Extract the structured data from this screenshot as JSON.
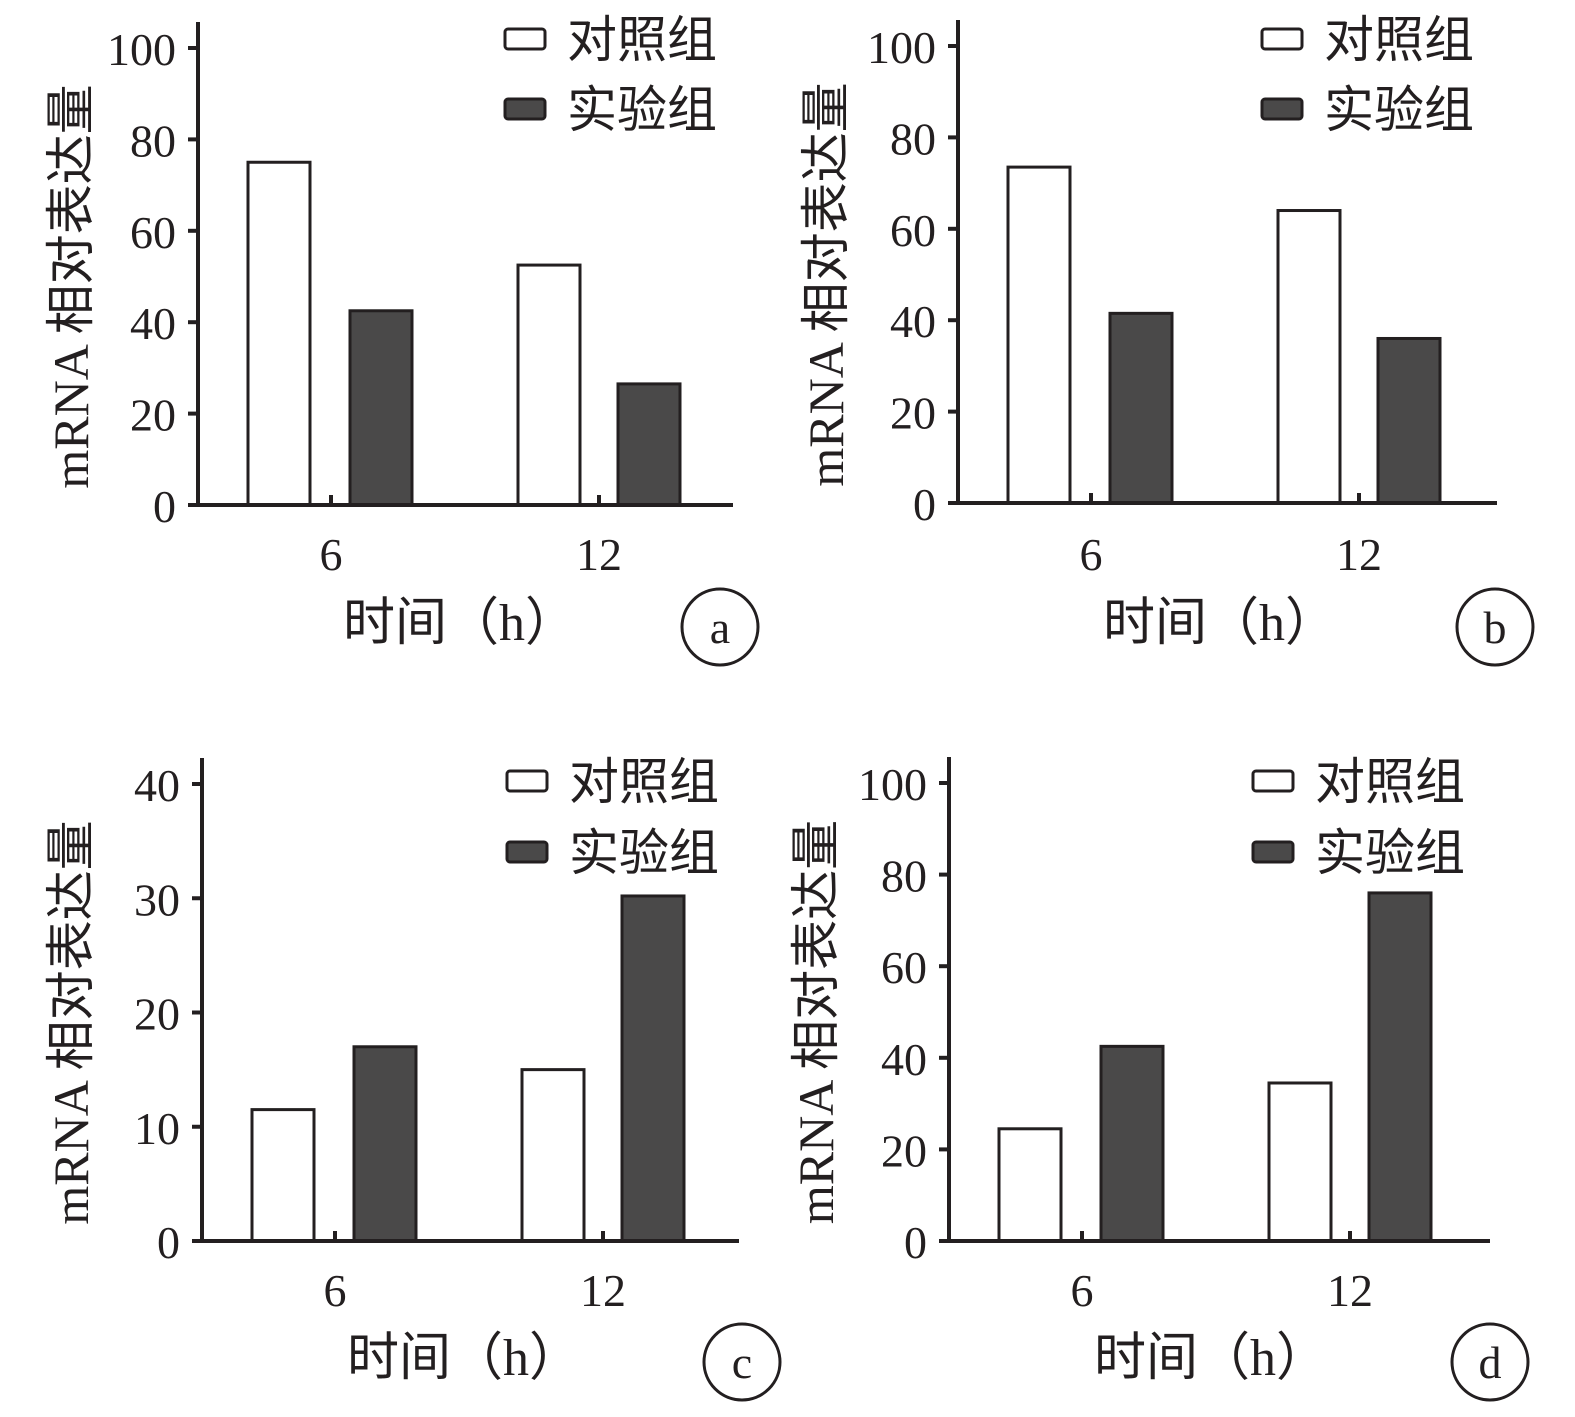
{
  "colors": {
    "control": "#ffffff",
    "experiment": "#4a4949",
    "ink": "#231f20"
  },
  "chart_data": [
    {
      "type": "bar",
      "panel_label": "a",
      "categories": [
        "6",
        "12"
      ],
      "xlabel": "时间（h）",
      "ylabel": "mRNA 相对表达量",
      "ylim": [
        0,
        100
      ],
      "yticks": [
        "0",
        "20",
        "40",
        "60",
        "80",
        "100"
      ],
      "legend_position": "top-right",
      "series": [
        {
          "name": "对照组",
          "values": [
            75,
            52.5
          ]
        },
        {
          "name": "实验组",
          "values": [
            42.5,
            26.5
          ]
        }
      ]
    },
    {
      "type": "bar",
      "panel_label": "b",
      "categories": [
        "6",
        "12"
      ],
      "xlabel": "时间（h）",
      "ylabel": "mRNA 相对表达量",
      "ylim": [
        0,
        100
      ],
      "yticks": [
        "0",
        "20",
        "40",
        "60",
        "80",
        "100"
      ],
      "legend_position": "top-right",
      "series": [
        {
          "name": "对照组",
          "values": [
            73.5,
            64
          ]
        },
        {
          "name": "实验组",
          "values": [
            41.5,
            36
          ]
        }
      ]
    },
    {
      "type": "bar",
      "panel_label": "c",
      "categories": [
        "6",
        "12"
      ],
      "xlabel": "时间（h）",
      "ylabel": "mRNA 相对表达量",
      "ylim": [
        0,
        40
      ],
      "yticks": [
        "0",
        "10",
        "20",
        "30",
        "40"
      ],
      "legend_position": "top-right",
      "series": [
        {
          "name": "对照组",
          "values": [
            11.5,
            15
          ]
        },
        {
          "name": "实验组",
          "values": [
            17,
            30.2
          ]
        }
      ]
    },
    {
      "type": "bar",
      "panel_label": "d",
      "categories": [
        "6",
        "12"
      ],
      "xlabel": "时间（h）",
      "ylabel": "mRNA 相对表达量",
      "ylim": [
        0,
        100
      ],
      "yticks": [
        "0",
        "20",
        "40",
        "60",
        "80",
        "100"
      ],
      "legend_position": "top-right",
      "series": [
        {
          "name": "对照组",
          "values": [
            24.5,
            34.5
          ]
        },
        {
          "name": "实验组",
          "values": [
            42.5,
            76
          ]
        }
      ]
    }
  ]
}
